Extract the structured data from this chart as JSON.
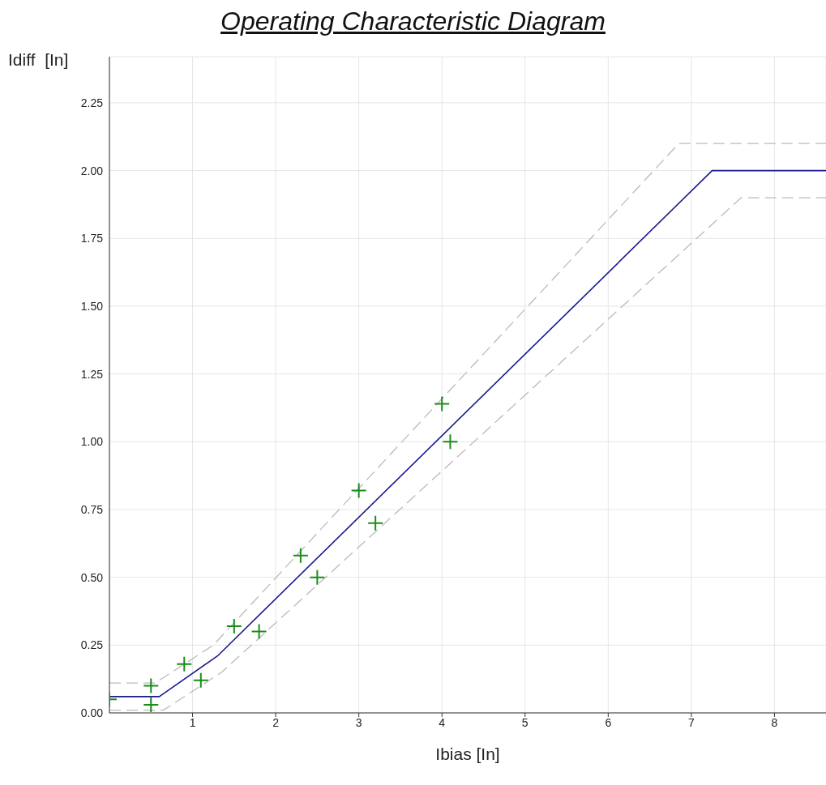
{
  "chart_data": {
    "type": "line",
    "title": "Operating Characteristic Diagram",
    "xlabel": "Ibias  [In]",
    "ylabel": "Idiff  [In]",
    "xlim": [
      0,
      8.62
    ],
    "xticks": [
      1,
      2,
      3,
      4,
      5,
      6,
      7,
      8
    ],
    "ylim": [
      0,
      2.42
    ],
    "yticks": [
      {
        "value": 0,
        "label": "0.00"
      },
      {
        "value": 0.25,
        "label": "0.25"
      },
      {
        "value": 0.5,
        "label": "0.50"
      },
      {
        "value": 0.75,
        "label": "0.75"
      },
      {
        "value": 1,
        "label": "1.00"
      },
      {
        "value": 1.25,
        "label": "1.25"
      },
      {
        "value": 1.5,
        "label": "1.50"
      },
      {
        "value": 1.75,
        "label": "1.75"
      },
      {
        "value": 2,
        "label": "2.00"
      },
      {
        "value": 2.25,
        "label": "2.25"
      }
    ],
    "grid": true,
    "series": [
      {
        "color": "#bbbbbb",
        "line_style": "dashed",
        "x": [
          0,
          0.55,
          1.25,
          6.85,
          8.62
        ],
        "values": [
          0.11,
          0.11,
          0.25,
          2.1,
          2.1
        ]
      },
      {
        "color": "#bbbbbb",
        "line_style": "dashed",
        "x": [
          0,
          0.65,
          1.35,
          7.6,
          8.62
        ],
        "values": [
          0.01,
          0.01,
          0.15,
          1.9,
          1.9
        ]
      },
      {
        "color": "#1a1a8c",
        "line_style": "solid",
        "x": [
          0,
          0.6,
          1.3,
          7.25,
          8.62
        ],
        "values": [
          0.06,
          0.06,
          0.21,
          2.0,
          2.0
        ]
      },
      {
        "type": "scatter",
        "color": "#1a8c1a",
        "marker": "cross",
        "x": [
          0,
          0.5,
          0.5,
          0.9,
          1.1,
          1.5,
          1.8,
          2.3,
          2.5,
          3.0,
          3.2,
          4.0,
          4.1
        ],
        "values": [
          0.05,
          0.1,
          0.03,
          0.18,
          0.12,
          0.32,
          0.3,
          0.58,
          0.5,
          0.82,
          0.7,
          1.14,
          1.0
        ]
      }
    ]
  }
}
